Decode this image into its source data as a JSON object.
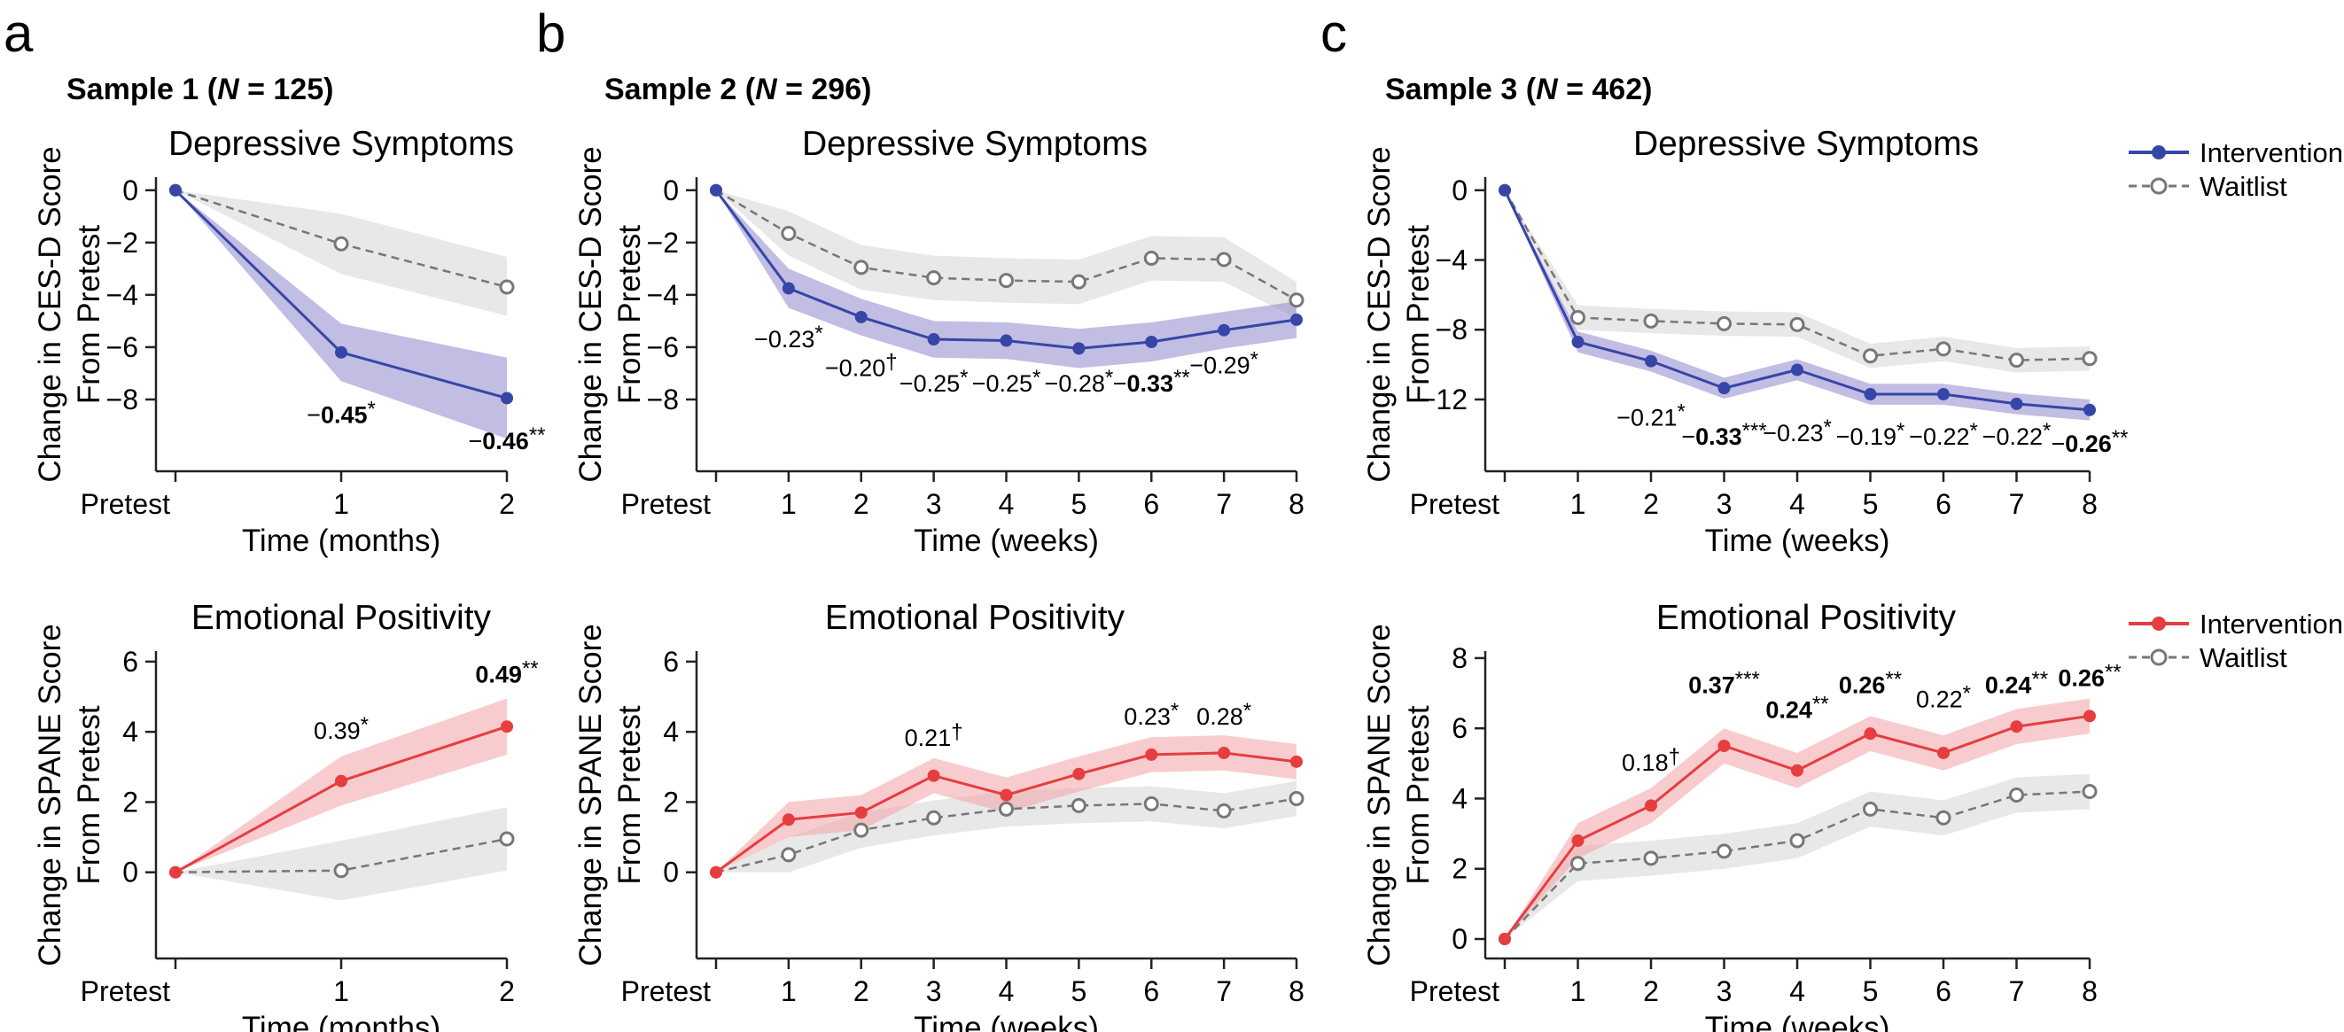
{
  "colors": {
    "intervention_depressive": "#3646a8",
    "intervention_depressive_band": "#8f87cc",
    "intervention_positivity": "#e63d3f",
    "intervention_positivity_band": "#f2a3a6",
    "waitlist": "#777777",
    "waitlist_band": "#e6e6e6"
  },
  "panels": [
    {
      "letter": "a",
      "sample_prefix": "Sample 1 (",
      "sample_n_symbol": "N",
      "sample_suffix": " = 125)"
    },
    {
      "letter": "b",
      "sample_prefix": "Sample 2 (",
      "sample_n_symbol": "N",
      "sample_suffix": " = 296)"
    },
    {
      "letter": "c",
      "sample_prefix": "Sample 3 (",
      "sample_n_symbol": "N",
      "sample_suffix": " = 462)"
    }
  ],
  "legends": [
    {
      "intervention_label": "Intervention",
      "waitlist_label": "Waitlist",
      "intervention_color": "#3646a8"
    },
    {
      "intervention_label": "Intervention",
      "waitlist_label": "Waitlist",
      "intervention_color": "#e63d3f"
    }
  ],
  "chart_data": [
    {
      "id": "s1-dep",
      "type": "line",
      "title": "Depressive Symptoms",
      "xlabel": "Time (months)",
      "ylabel_lines": [
        "Change in CES-D Score",
        "From Pretest"
      ],
      "categories": [
        "Pretest",
        "1",
        "2"
      ],
      "yticks": [
        0,
        -2,
        -4,
        -6,
        -8
      ],
      "ylim": [
        -10,
        0.5
      ],
      "series": [
        {
          "name": "Intervention",
          "role": "intervention",
          "values": [
            0,
            -6.2,
            -7.95
          ],
          "band_lower": [
            0,
            -7.3,
            -9.5
          ],
          "band_upper": [
            0,
            -5.1,
            -6.4
          ]
        },
        {
          "name": "Waitlist",
          "role": "waitlist",
          "values": [
            0,
            -2.05,
            -3.7
          ],
          "band_lower": [
            0,
            -3.2,
            -4.8
          ],
          "band_upper": [
            0,
            -0.9,
            -2.55
          ]
        }
      ],
      "annotations": [
        {
          "x": "1",
          "prefix": "−",
          "value": "0.45",
          "stars": "*",
          "bold": true,
          "y": -8.9
        },
        {
          "x": "2",
          "prefix": "−",
          "value": "0.46",
          "stars": "**",
          "bold": true,
          "y": -9.9
        }
      ]
    },
    {
      "id": "s2-dep",
      "type": "line",
      "title": "Depressive Symptoms",
      "xlabel": "Time (weeks)",
      "ylabel_lines": [
        "Change in CES-D Score",
        "From Pretest"
      ],
      "categories": [
        "Pretest",
        "1",
        "2",
        "3",
        "4",
        "5",
        "6",
        "7",
        "8"
      ],
      "yticks": [
        0,
        -2,
        -4,
        -6,
        -8
      ],
      "ylim": [
        -10,
        0.5
      ],
      "series": [
        {
          "name": "Intervention",
          "role": "intervention",
          "values": [
            0,
            -3.75,
            -4.85,
            -5.7,
            -5.75,
            -6.05,
            -5.8,
            -5.35,
            -4.95
          ],
          "band_lower": [
            0,
            -4.5,
            -5.55,
            -6.4,
            -6.45,
            -6.8,
            -6.55,
            -6.05,
            -5.65
          ],
          "band_upper": [
            0,
            -3.0,
            -4.15,
            -5.0,
            -5.05,
            -5.3,
            -5.05,
            -4.65,
            -4.25
          ]
        },
        {
          "name": "Waitlist",
          "role": "waitlist",
          "values": [
            0,
            -1.65,
            -2.95,
            -3.35,
            -3.45,
            -3.5,
            -2.6,
            -2.65,
            -4.2
          ],
          "band_lower": [
            0,
            -2.5,
            -3.8,
            -4.2,
            -4.3,
            -4.35,
            -3.45,
            -3.5,
            -4.9
          ],
          "band_upper": [
            0,
            -0.8,
            -2.1,
            -2.5,
            -2.6,
            -2.65,
            -1.75,
            -1.8,
            -3.5
          ]
        }
      ],
      "annotations": [
        {
          "x": "1",
          "prefix": "−",
          "value": "0.23",
          "stars": "*",
          "bold": false,
          "y": -6.0
        },
        {
          "x": "2",
          "prefix": "−",
          "value": "0.20",
          "stars": "†",
          "bold": false,
          "y": -7.1
        },
        {
          "x": "3",
          "prefix": "−",
          "value": "0.25",
          "stars": "*",
          "bold": false,
          "y": -7.7
        },
        {
          "x": "4",
          "prefix": "−",
          "value": "0.25",
          "stars": "*",
          "bold": false,
          "y": -7.7
        },
        {
          "x": "5",
          "prefix": "−",
          "value": "0.28",
          "stars": "*",
          "bold": false,
          "y": -7.7
        },
        {
          "x": "6",
          "prefix": "−",
          "value": "0.33",
          "stars": "**",
          "bold": true,
          "y": -7.7
        },
        {
          "x": "7",
          "prefix": "−",
          "value": "0.29",
          "stars": "*",
          "bold": false,
          "y": -7.0
        }
      ]
    },
    {
      "id": "s3-dep",
      "type": "line",
      "title": "Depressive Symptoms",
      "xlabel": "Time (weeks)",
      "ylabel_lines": [
        "Change in CES-D Score",
        "From Pretest"
      ],
      "categories": [
        "Pretest",
        "1",
        "2",
        "3",
        "4",
        "5",
        "6",
        "7",
        "8"
      ],
      "yticks": [
        0,
        -4,
        -8,
        -12
      ],
      "ylim": [
        -15,
        0.75
      ],
      "series": [
        {
          "name": "Intervention",
          "role": "intervention",
          "values": [
            0,
            -8.7,
            -9.8,
            -11.35,
            -10.3,
            -11.7,
            -11.7,
            -12.25,
            -12.6
          ],
          "band_lower": [
            0,
            -9.3,
            -10.4,
            -11.95,
            -10.9,
            -12.3,
            -12.3,
            -12.85,
            -13.2
          ],
          "band_upper": [
            0,
            -8.1,
            -9.2,
            -10.75,
            -9.7,
            -11.1,
            -11.1,
            -11.65,
            -12.0
          ]
        },
        {
          "name": "Waitlist",
          "role": "waitlist",
          "values": [
            0,
            -7.3,
            -7.5,
            -7.65,
            -7.7,
            -9.5,
            -9.1,
            -9.75,
            -9.65
          ],
          "band_lower": [
            0,
            -8.0,
            -8.2,
            -8.35,
            -8.4,
            -10.2,
            -9.8,
            -10.45,
            -10.35
          ],
          "band_upper": [
            0,
            -6.6,
            -6.8,
            -6.95,
            -7.0,
            -8.8,
            -8.4,
            -9.05,
            -8.95
          ]
        }
      ],
      "annotations": [
        {
          "x": "2",
          "prefix": "−",
          "value": "0.21",
          "stars": "*",
          "bold": false,
          "y": -13.5
        },
        {
          "x": "3",
          "prefix": "−",
          "value": "0.33",
          "stars": "***",
          "bold": true,
          "y": -14.6
        },
        {
          "x": "4",
          "prefix": "−",
          "value": "0.23",
          "stars": "*",
          "bold": false,
          "y": -14.4
        },
        {
          "x": "5",
          "prefix": "−",
          "value": "0.19",
          "stars": "*",
          "bold": false,
          "y": -14.6
        },
        {
          "x": "6",
          "prefix": "−",
          "value": "0.22",
          "stars": "*",
          "bold": false,
          "y": -14.6
        },
        {
          "x": "7",
          "prefix": "−",
          "value": "0.22",
          "stars": "*",
          "bold": false,
          "y": -14.6
        },
        {
          "x": "8",
          "prefix": "−",
          "value": "0.26",
          "stars": "**",
          "bold": true,
          "y": -15.0
        }
      ]
    },
    {
      "id": "s1-pos",
      "type": "line",
      "title": "Emotional Positivity",
      "xlabel": "Time (months)",
      "ylabel_lines": [
        "Change in SPANE Score",
        "From Pretest"
      ],
      "categories": [
        "Pretest",
        "1",
        "2"
      ],
      "yticks": [
        0,
        2,
        4,
        6
      ],
      "ylim": [
        -1.9,
        6.3
      ],
      "series": [
        {
          "name": "Intervention",
          "role": "intervention",
          "values": [
            0,
            2.6,
            4.15
          ],
          "band_lower": [
            0,
            1.9,
            3.35
          ],
          "band_upper": [
            0,
            3.3,
            4.95
          ]
        },
        {
          "name": "Waitlist",
          "role": "waitlist",
          "values": [
            0,
            0.05,
            0.95
          ],
          "band_lower": [
            0,
            -0.8,
            0.05
          ],
          "band_upper": [
            0,
            0.9,
            1.85
          ]
        }
      ],
      "annotations": [
        {
          "x": "1",
          "prefix": "",
          "value": "0.39",
          "stars": "*",
          "bold": false,
          "y": 3.8
        },
        {
          "x": "2",
          "prefix": "",
          "value": "0.49",
          "stars": "**",
          "bold": true,
          "y": 5.4
        }
      ]
    },
    {
      "id": "s2-pos",
      "type": "line",
      "title": "Emotional Positivity",
      "xlabel": "Time (weeks)",
      "ylabel_lines": [
        "Change in SPANE Score",
        "From Pretest"
      ],
      "categories": [
        "Pretest",
        "1",
        "2",
        "3",
        "4",
        "5",
        "6",
        "7",
        "8"
      ],
      "yticks": [
        0,
        2,
        4,
        6
      ],
      "ylim": [
        -1.9,
        6.3
      ],
      "series": [
        {
          "name": "Intervention",
          "role": "intervention",
          "values": [
            0,
            1.5,
            1.7,
            2.75,
            2.2,
            2.8,
            3.35,
            3.4,
            3.15
          ],
          "band_lower": [
            0,
            1.0,
            1.2,
            2.25,
            1.7,
            2.3,
            2.85,
            2.9,
            2.65
          ],
          "band_upper": [
            0,
            2.0,
            2.2,
            3.25,
            2.7,
            3.3,
            3.85,
            3.9,
            3.65
          ]
        },
        {
          "name": "Waitlist",
          "role": "waitlist",
          "values": [
            0,
            0.5,
            1.2,
            1.55,
            1.8,
            1.9,
            1.95,
            1.75,
            2.1
          ],
          "band_lower": [
            0,
            0.0,
            0.7,
            1.05,
            1.3,
            1.4,
            1.45,
            1.25,
            1.6
          ],
          "band_upper": [
            0,
            1.0,
            1.7,
            2.05,
            2.3,
            2.4,
            2.45,
            2.25,
            2.6
          ]
        }
      ],
      "annotations": [
        {
          "x": "3",
          "prefix": "",
          "value": "0.21",
          "stars": "†",
          "bold": false,
          "y": 3.6
        },
        {
          "x": "6",
          "prefix": "",
          "value": "0.23",
          "stars": "*",
          "bold": false,
          "y": 4.2
        },
        {
          "x": "7",
          "prefix": "",
          "value": "0.28",
          "stars": "*",
          "bold": false,
          "y": 4.2
        }
      ]
    },
    {
      "id": "s3-pos",
      "type": "line",
      "title": "Emotional Positivity",
      "xlabel": "Time (weeks)",
      "ylabel_lines": [
        "Change in SPANE Score",
        "From Pretest"
      ],
      "categories": [
        "Pretest",
        "1",
        "2",
        "3",
        "4",
        "5",
        "6",
        "7",
        "8"
      ],
      "yticks": [
        0,
        2,
        4,
        6,
        8
      ],
      "ylim": [
        0,
        8.2
      ],
      "series": [
        {
          "name": "Intervention",
          "role": "intervention",
          "values": [
            0,
            2.8,
            3.8,
            5.5,
            4.8,
            5.85,
            5.3,
            6.05,
            6.35
          ],
          "band_lower": [
            0,
            2.3,
            3.3,
            5.0,
            4.3,
            5.35,
            4.8,
            5.55,
            5.85
          ],
          "band_upper": [
            0,
            3.3,
            4.3,
            6.0,
            5.3,
            6.35,
            5.8,
            6.55,
            6.85
          ]
        },
        {
          "name": "Waitlist",
          "role": "waitlist",
          "values": [
            0,
            2.15,
            2.3,
            2.5,
            2.8,
            3.7,
            3.45,
            4.1,
            4.2
          ],
          "band_lower": [
            0,
            1.65,
            1.8,
            2.0,
            2.3,
            3.2,
            2.95,
            3.6,
            3.7
          ],
          "band_upper": [
            0,
            2.65,
            2.8,
            3.0,
            3.3,
            4.2,
            3.95,
            4.6,
            4.7
          ]
        }
      ],
      "annotations": [
        {
          "x": "2",
          "prefix": "",
          "value": "0.18",
          "stars": "†",
          "bold": false,
          "y": 4.8
        },
        {
          "x": "3",
          "prefix": "",
          "value": "0.37",
          "stars": "***",
          "bold": true,
          "y": 7.0
        },
        {
          "x": "4",
          "prefix": "",
          "value": "0.24",
          "stars": "**",
          "bold": true,
          "y": 6.3
        },
        {
          "x": "5",
          "prefix": "",
          "value": "0.26",
          "stars": "**",
          "bold": true,
          "y": 7.0
        },
        {
          "x": "6",
          "prefix": "",
          "value": "0.22",
          "stars": "*",
          "bold": false,
          "y": 6.6
        },
        {
          "x": "7",
          "prefix": "",
          "value": "0.24",
          "stars": "**",
          "bold": true,
          "y": 7.0
        },
        {
          "x": "8",
          "prefix": "",
          "value": "0.26",
          "stars": "**",
          "bold": true,
          "y": 7.2
        }
      ]
    }
  ]
}
